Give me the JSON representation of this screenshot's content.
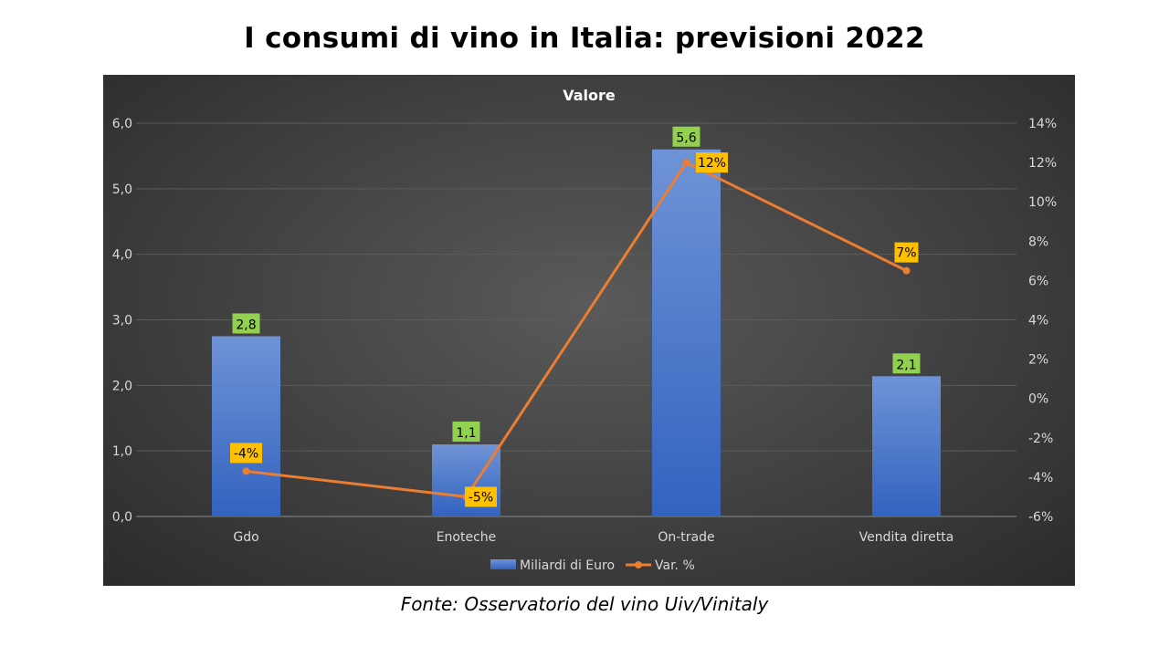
{
  "page": {
    "title": "I consumi di vino in Italia: previsioni 2022",
    "source": "Fonte: Osservatorio del vino Uiv/Vinitaly"
  },
  "chart_data": {
    "type": "bar",
    "title": "Valore",
    "categories": [
      "Gdo",
      "Enoteche",
      "On-trade",
      "Vendita diretta"
    ],
    "series": [
      {
        "name": "Miliardi di Euro",
        "kind": "bar",
        "axis": "left",
        "values": [
          2.75,
          1.1,
          5.6,
          2.14
        ],
        "labels": [
          "2,8",
          "1,1",
          "5,6",
          "2,1"
        ],
        "color": "#4472c4",
        "label_bg": "#92d050"
      },
      {
        "name": "Var. %",
        "kind": "line",
        "axis": "right",
        "values": [
          -3.7,
          -5.0,
          12.0,
          6.5
        ],
        "labels": [
          "-4%",
          "-5%",
          "12%",
          "7%"
        ],
        "color": "#ed7d31",
        "label_bg": "#ffc000"
      }
    ],
    "y_left": {
      "ylim": [
        0,
        6
      ],
      "ticks": [
        0,
        1,
        2,
        3,
        4,
        5,
        6
      ],
      "tick_labels": [
        "0,0",
        "1,0",
        "2,0",
        "3,0",
        "4,0",
        "5,0",
        "6,0"
      ]
    },
    "y_right": {
      "ylim": [
        -6,
        14
      ],
      "ticks": [
        -6,
        -4,
        -2,
        0,
        2,
        4,
        6,
        8,
        10,
        12,
        14
      ],
      "tick_labels": [
        "-6%",
        "-4%",
        "-2%",
        "0%",
        "2%",
        "4%",
        "6%",
        "8%",
        "10%",
        "12%",
        "14%"
      ]
    },
    "grid": true,
    "legend": "bottom",
    "colors": {
      "background": "#404040",
      "grid": "#5c5c5c",
      "text": "#d9d9d9"
    }
  }
}
